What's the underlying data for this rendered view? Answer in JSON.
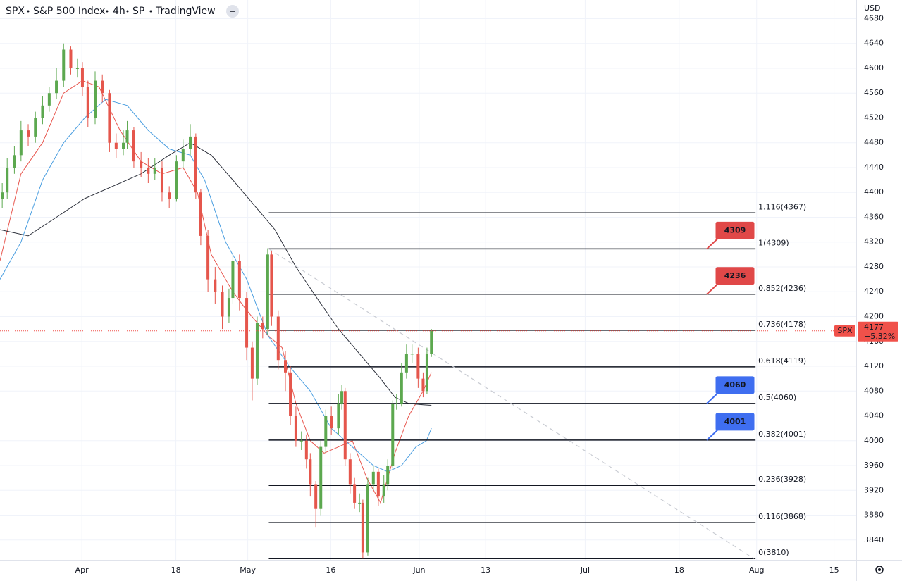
{
  "chart_data": {
    "type": "candlestick",
    "header": {
      "symbol": "SPX",
      "name": "S&P 500 Index",
      "interval": "4h",
      "exchange": "SP",
      "source": "TradingView"
    },
    "currency": "USD",
    "up_color": "#5ca84f",
    "down_color": "#e5564c",
    "grid": true,
    "ylim": [
      3808,
      4710
    ],
    "yticks": [
      3840,
      3880,
      3920,
      3960,
      4000,
      4040,
      4080,
      4120,
      4160,
      4200,
      4240,
      4280,
      4320,
      4360,
      4400,
      4440,
      4480,
      4520,
      4560,
      4600,
      4640,
      4680
    ],
    "xlim": [
      -14.8,
      140
    ],
    "xticks": [
      {
        "value": 0,
        "label": "Apr"
      },
      {
        "value": 17,
        "label": "18"
      },
      {
        "value": 30,
        "label": "May"
      },
      {
        "value": 45,
        "label": "16"
      },
      {
        "value": 61,
        "label": "Jun"
      },
      {
        "value": 73,
        "label": "13"
      },
      {
        "value": 91,
        "label": "Jul"
      },
      {
        "value": 108,
        "label": "18"
      },
      {
        "value": 122,
        "label": "Aug"
      },
      {
        "value": 136,
        "label": "15"
      }
    ],
    "x": [
      -14.4,
      -13.5,
      -12.2,
      -11.0,
      -9.7,
      -8.4,
      -7.1,
      -5.9,
      -4.6,
      -3.3,
      -2.0,
      -0.8,
      0.1,
      1.1,
      2.4,
      3.7,
      5.0,
      6.2,
      7.5,
      8.2,
      9.4,
      10.7,
      12.0,
      13.2,
      14.5,
      15.8,
      17.1,
      18.3,
      19.6,
      20.6,
      21.5,
      22.8,
      24.1,
      25.4,
      26.6,
      27.3,
      28.5,
      29.8,
      30.8,
      31.7,
      32.7,
      33.6,
      34.3,
      35.5,
      36.8,
      37.7,
      38.7,
      39.7,
      40.6,
      41.3,
      42.3,
      43.2,
      44.1,
      45.1,
      46.4,
      47.0,
      47.6,
      48.5,
      49.3,
      50.2,
      50.8,
      51.7,
      52.7,
      53.6,
      54.6,
      55.3,
      56.2,
      56.9,
      57.8,
      58.7,
      59.7,
      60.8,
      61.7,
      62.4,
      63.2
    ],
    "open": [
      4390,
      4400,
      4440,
      4460,
      4500,
      4490,
      4520,
      4540,
      4560,
      4580,
      4630,
      4600,
      4600,
      4570,
      4520,
      4580,
      4560,
      4480,
      4470,
      4480,
      4500,
      4450,
      4440,
      4430,
      4440,
      4400,
      4390,
      4450,
      4470,
      4490,
      4400,
      4330,
      4260,
      4240,
      4200,
      4230,
      4290,
      4230,
      4150,
      4100,
      4190,
      4180,
      4300,
      4200,
      4130,
      4110,
      4040,
      4000,
      4000,
      3970,
      3930,
      3890,
      3990,
      4040,
      4020,
      4060,
      4080,
      3970,
      3930,
      3900,
      3900,
      3820,
      3930,
      3950,
      3910,
      3930,
      3960,
      4060,
      4060,
      4110,
      4140,
      4140,
      4100,
      4080,
      4140
    ],
    "high": [
      4415,
      4455,
      4475,
      4515,
      4510,
      4530,
      4555,
      4570,
      4600,
      4640,
      4635,
      4615,
      4610,
      4580,
      4595,
      4590,
      4565,
      4495,
      4500,
      4515,
      4505,
      4465,
      4455,
      4455,
      4450,
      4410,
      4460,
      4485,
      4510,
      4495,
      4405,
      4340,
      4280,
      4250,
      4245,
      4300,
      4300,
      4240,
      4160,
      4200,
      4200,
      4310,
      4305,
      4210,
      4145,
      4120,
      4055,
      4015,
      4010,
      3980,
      3935,
      4000,
      4050,
      4055,
      4075,
      4090,
      4085,
      3980,
      3940,
      3915,
      3905,
      3940,
      3960,
      3955,
      3945,
      3970,
      4065,
      4075,
      4125,
      4155,
      4155,
      4150,
      4110,
      4150,
      4180
    ],
    "low": [
      4375,
      4390,
      4430,
      4450,
      4475,
      4480,
      4510,
      4530,
      4550,
      4570,
      4590,
      4585,
      4555,
      4505,
      4510,
      4545,
      4465,
      4455,
      4460,
      4470,
      4440,
      4425,
      4415,
      4420,
      4385,
      4375,
      4385,
      4440,
      4460,
      4390,
      4315,
      4240,
      4220,
      4180,
      4190,
      4220,
      4210,
      4130,
      4065,
      4090,
      4165,
      4170,
      4185,
      4115,
      4080,
      4025,
      3990,
      3985,
      3955,
      3910,
      3860,
      3880,
      3980,
      4010,
      4010,
      4050,
      3960,
      3915,
      3890,
      3885,
      3810,
      3815,
      3920,
      3895,
      3900,
      3920,
      3955,
      4050,
      4055,
      4100,
      4125,
      4085,
      4070,
      4075,
      4135
    ],
    "close": [
      4400,
      4440,
      4460,
      4500,
      4490,
      4520,
      4540,
      4560,
      4580,
      4630,
      4600,
      4600,
      4570,
      4520,
      4580,
      4560,
      4480,
      4470,
      4480,
      4500,
      4450,
      4440,
      4430,
      4440,
      4400,
      4390,
      4450,
      4470,
      4490,
      4400,
      4330,
      4260,
      4240,
      4200,
      4230,
      4290,
      4230,
      4150,
      4100,
      4190,
      4180,
      4300,
      4200,
      4130,
      4110,
      4040,
      4000,
      4000,
      3970,
      3930,
      3890,
      3990,
      4040,
      4020,
      4060,
      4080,
      3970,
      3930,
      3900,
      3900,
      3820,
      3930,
      3950,
      3910,
      3930,
      3960,
      4060,
      4060,
      4110,
      4140,
      4140,
      4100,
      4080,
      4140,
      4177
    ],
    "moving_averages": [
      {
        "color": "#e8574f",
        "x": [
          -14.8,
          -11.0,
          -7.1,
          -3.3,
          0.1,
          3.1,
          6.9,
          10.7,
          14.5,
          18.3,
          20.9,
          23.4,
          27.3,
          29.8,
          33.6,
          36.2,
          38.7,
          41.3,
          43.8,
          46.4,
          48.9,
          51.5,
          54.0,
          56.6,
          59.1,
          61.7,
          63.2
        ],
        "values": [
          4290,
          4430,
          4480,
          4560,
          4580,
          4570,
          4500,
          4450,
          4430,
          4440,
          4400,
          4300,
          4240,
          4210,
          4170,
          4150,
          4060,
          4000,
          3980,
          3990,
          4000,
          3940,
          3900,
          3980,
          4040,
          4080,
          4110
        ]
      },
      {
        "color": "#4a9ee0",
        "x": [
          -14.8,
          -11.0,
          -7.1,
          -3.3,
          0.5,
          4.3,
          8.2,
          12.0,
          15.8,
          19.6,
          22.2,
          26.0,
          29.8,
          33.6,
          37.5,
          41.3,
          45.1,
          48.9,
          52.7,
          55.3,
          57.8,
          60.4,
          62.3,
          63.2
        ],
        "values": [
          4260,
          4320,
          4420,
          4480,
          4520,
          4550,
          4540,
          4500,
          4470,
          4460,
          4420,
          4320,
          4260,
          4170,
          4120,
          4080,
          4020,
          3990,
          3960,
          3950,
          3960,
          3990,
          4000,
          4020
        ]
      },
      {
        "color": "#2a2e39",
        "x": [
          -14.8,
          -9.7,
          -4.6,
          0.5,
          5.6,
          10.7,
          15.8,
          19.6,
          23.4,
          27.3,
          31.1,
          34.9,
          38.7,
          42.5,
          46.4,
          50.2,
          54.0,
          56.6,
          59.1,
          61.7,
          63.2
        ],
        "values": [
          4340,
          4330,
          4360,
          4390,
          4410,
          4430,
          4460,
          4480,
          4460,
          4420,
          4380,
          4340,
          4280,
          4230,
          4180,
          4140,
          4100,
          4070,
          4060,
          4058,
          4057
        ]
      }
    ],
    "fib_start": 33.8,
    "fib_end": 121.8,
    "fib_levels": [
      {
        "price": 4367,
        "label": "1.116(4367)"
      },
      {
        "price": 4309,
        "label": "1(4309)"
      },
      {
        "price": 4236,
        "label": "0.852(4236)"
      },
      {
        "price": 4178,
        "label": "0.736(4178)"
      },
      {
        "price": 4119,
        "label": "0.618(4119)"
      },
      {
        "price": 4060,
        "label": "0.5(4060)"
      },
      {
        "price": 4001,
        "label": "0.382(4001)"
      },
      {
        "price": 3928,
        "label": "0.236(3928)"
      },
      {
        "price": 3868,
        "label": "0.116(3868)"
      },
      {
        "price": 3810,
        "label": "0(3810)"
      }
    ],
    "callouts": [
      {
        "value": 4309,
        "color": "#e04848"
      },
      {
        "value": 4236,
        "color": "#e04848"
      },
      {
        "value": 4060,
        "color": "#3f6ef0"
      },
      {
        "value": 4001,
        "color": "#3f6ef0"
      }
    ],
    "trendline": {
      "x": [
        33.8,
        121.5
      ],
      "values": [
        4309,
        3810
      ]
    },
    "last_price": {
      "symbol": "SPX",
      "value": 4177,
      "change_label": "−5.32%",
      "color": "#f0514a"
    }
  }
}
